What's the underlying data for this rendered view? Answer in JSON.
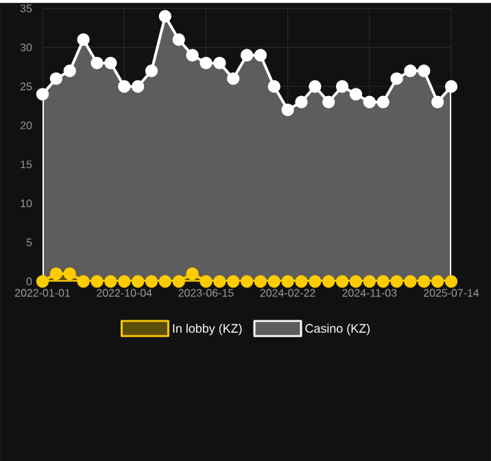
{
  "chart_data": {
    "type": "area",
    "categories": [
      "2022-01-01",
      null,
      null,
      null,
      null,
      null,
      "2022-10-04",
      null,
      null,
      null,
      null,
      null,
      "2023-06-15",
      null,
      null,
      null,
      null,
      null,
      "2024-02-22",
      null,
      null,
      null,
      null,
      null,
      "2024-11-03",
      null,
      null,
      null,
      null,
      null,
      "2025-07-14"
    ],
    "series": [
      {
        "name": "In lobby (KZ)",
        "color": "#ffcc00",
        "values": [
          0,
          1,
          1,
          0,
          0,
          0,
          0,
          0,
          0,
          0,
          0,
          1,
          0,
          0,
          0,
          0,
          0,
          0,
          0,
          0,
          0,
          0,
          0,
          0,
          0,
          0,
          0,
          0,
          0,
          0,
          0
        ]
      },
      {
        "name": "Casino (KZ)",
        "color": "#ffffff",
        "values": [
          24,
          26,
          27,
          31,
          28,
          28,
          25,
          25,
          27,
          34,
          31,
          29,
          28,
          28,
          26,
          29,
          29,
          25,
          22,
          23,
          25,
          23,
          25,
          24,
          23,
          23,
          26,
          27,
          27,
          23,
          25
        ]
      }
    ],
    "ylim": [
      0,
      35
    ],
    "yticks": [
      0,
      5,
      10,
      15,
      20,
      25,
      30,
      35
    ],
    "grid": true,
    "legend": "bottom",
    "marker": "circle",
    "line_style": "solid"
  }
}
